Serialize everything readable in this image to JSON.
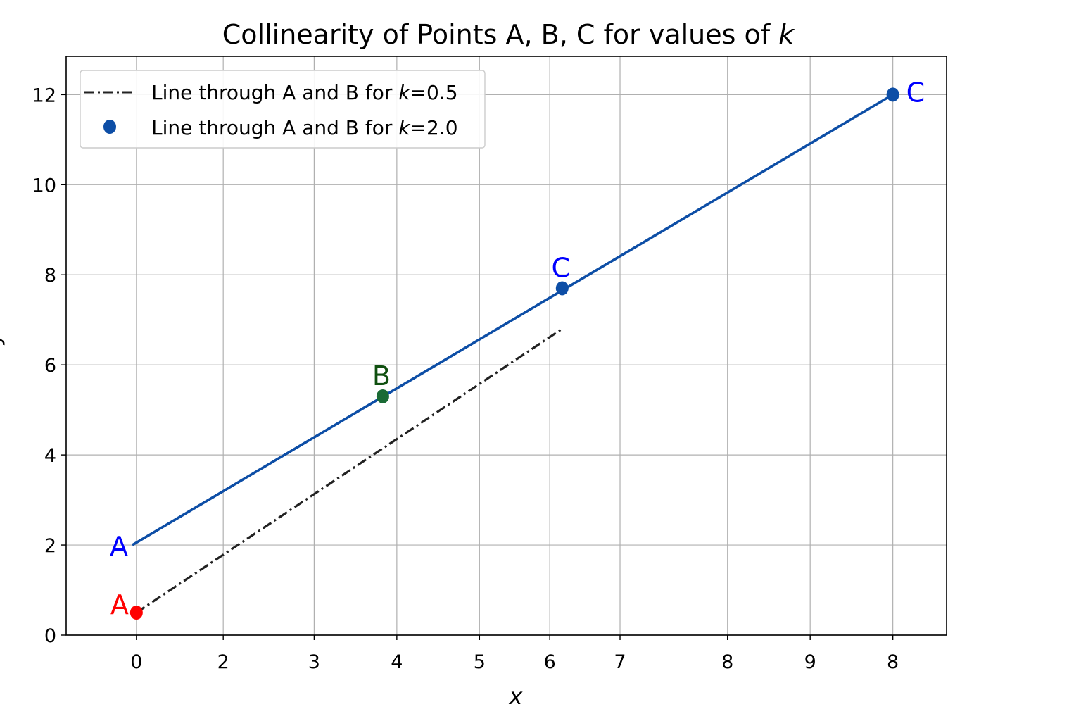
{
  "chart_data": {
    "type": "line",
    "title": "Collinearity of Points A, B, C for values of k",
    "title_parts": {
      "prefix": "Collinearity of Points A, B, C for values of ",
      "var": "k"
    },
    "xlabel": "x",
    "ylabel": "y",
    "grid": true,
    "legend_position": "top-left",
    "x_ticks": [
      {
        "value": 0,
        "label": "0"
      },
      {
        "value": 1.05,
        "label": "2"
      },
      {
        "value": 2.15,
        "label": "3"
      },
      {
        "value": 3.15,
        "label": "4"
      },
      {
        "value": 4.15,
        "label": "5"
      },
      {
        "value": 5.0,
        "label": "6"
      },
      {
        "value": 5.85,
        "label": "7"
      },
      {
        "value": 7.15,
        "label": "8"
      },
      {
        "value": 8.15,
        "label": "9"
      },
      {
        "value": 9.15,
        "label": "8"
      }
    ],
    "xlim": [
      -0.85,
      9.8
    ],
    "y_ticks": [
      0,
      2,
      4,
      6,
      8,
      10,
      12
    ],
    "ylim": [
      0,
      12.85
    ],
    "series": [
      {
        "name": "Line through A and B for k=0.5",
        "legend_parts": {
          "prefix": "Line through A and B for ",
          "var": "k",
          "suffix": "=0.5"
        },
        "style": "dashdot",
        "color": "#222222",
        "x": [
          0.0,
          5.15
        ],
        "y": [
          0.5,
          6.8
        ]
      },
      {
        "name": "Line through A and B for k=2.0",
        "legend_parts": {
          "prefix": "Line through A and B for ",
          "var": "k",
          "suffix": "=2.0"
        },
        "style": "solid-with-markers",
        "color": "#0d4ea6",
        "x": [
          -0.05,
          9.15
        ],
        "y": [
          2.0,
          12.0
        ]
      }
    ],
    "points": [
      {
        "label": "A",
        "x": 0.0,
        "y": 0.5,
        "color": "#ff0000",
        "marker": true,
        "label_color": "#ff0000"
      },
      {
        "label": "A",
        "x": -0.05,
        "y": 2.0,
        "color": "#0d4ea6",
        "marker": false,
        "label_color": "#0000ff"
      },
      {
        "label": "B",
        "x": 2.98,
        "y": 5.3,
        "color": "#1a6b35",
        "marker": true,
        "label_color": "#105010"
      },
      {
        "label": "C",
        "x": 5.15,
        "y": 7.7,
        "color": "#0d4ea6",
        "marker": true,
        "label_color": "#0000ff"
      },
      {
        "label": "C",
        "x": 9.15,
        "y": 12.0,
        "color": "#0d4ea6",
        "marker": true,
        "label_color": "#0000ff"
      }
    ]
  }
}
